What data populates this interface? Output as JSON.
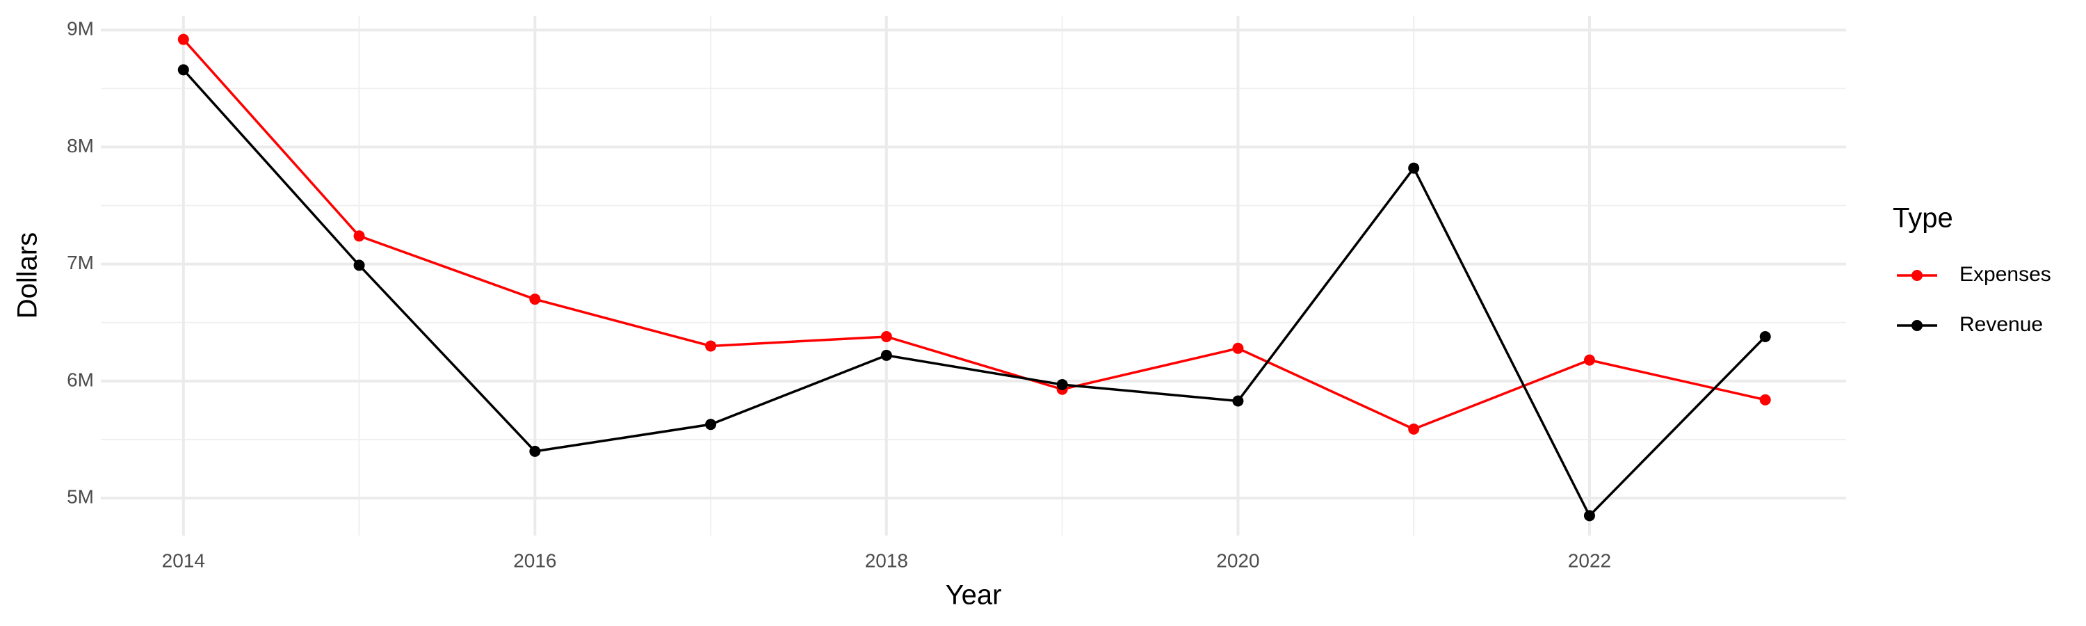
{
  "chart_data": {
    "type": "line",
    "x_label": "Year",
    "y_label": "Dollars",
    "legend_title": "Type",
    "x": [
      2014,
      2015,
      2016,
      2017,
      2018,
      2019,
      2020,
      2021,
      2022,
      2023
    ],
    "series": [
      {
        "name": "Expenses",
        "color": "#ff0000",
        "values": [
          8920000,
          7240000,
          6700000,
          6300000,
          6380000,
          5930000,
          6280000,
          5590000,
          6180000,
          5840000
        ]
      },
      {
        "name": "Revenue",
        "color": "#000000",
        "values": [
          8660000,
          6990000,
          5400000,
          5630000,
          6220000,
          5970000,
          5830000,
          7820000,
          4850000,
          6380000
        ]
      }
    ],
    "xlim": [
      2013.53,
      2023.46
    ],
    "xticks": [
      2014,
      2016,
      2018,
      2020,
      2022
    ],
    "ylim": [
      4680000,
      9120000
    ],
    "yticks": [
      {
        "value": 5000000,
        "label": "5M"
      },
      {
        "value": 6000000,
        "label": "6M"
      },
      {
        "value": 7000000,
        "label": "7M"
      },
      {
        "value": 8000000,
        "label": "8M"
      },
      {
        "value": 9000000,
        "label": "9M"
      }
    ],
    "grid": true,
    "legend": "right"
  }
}
